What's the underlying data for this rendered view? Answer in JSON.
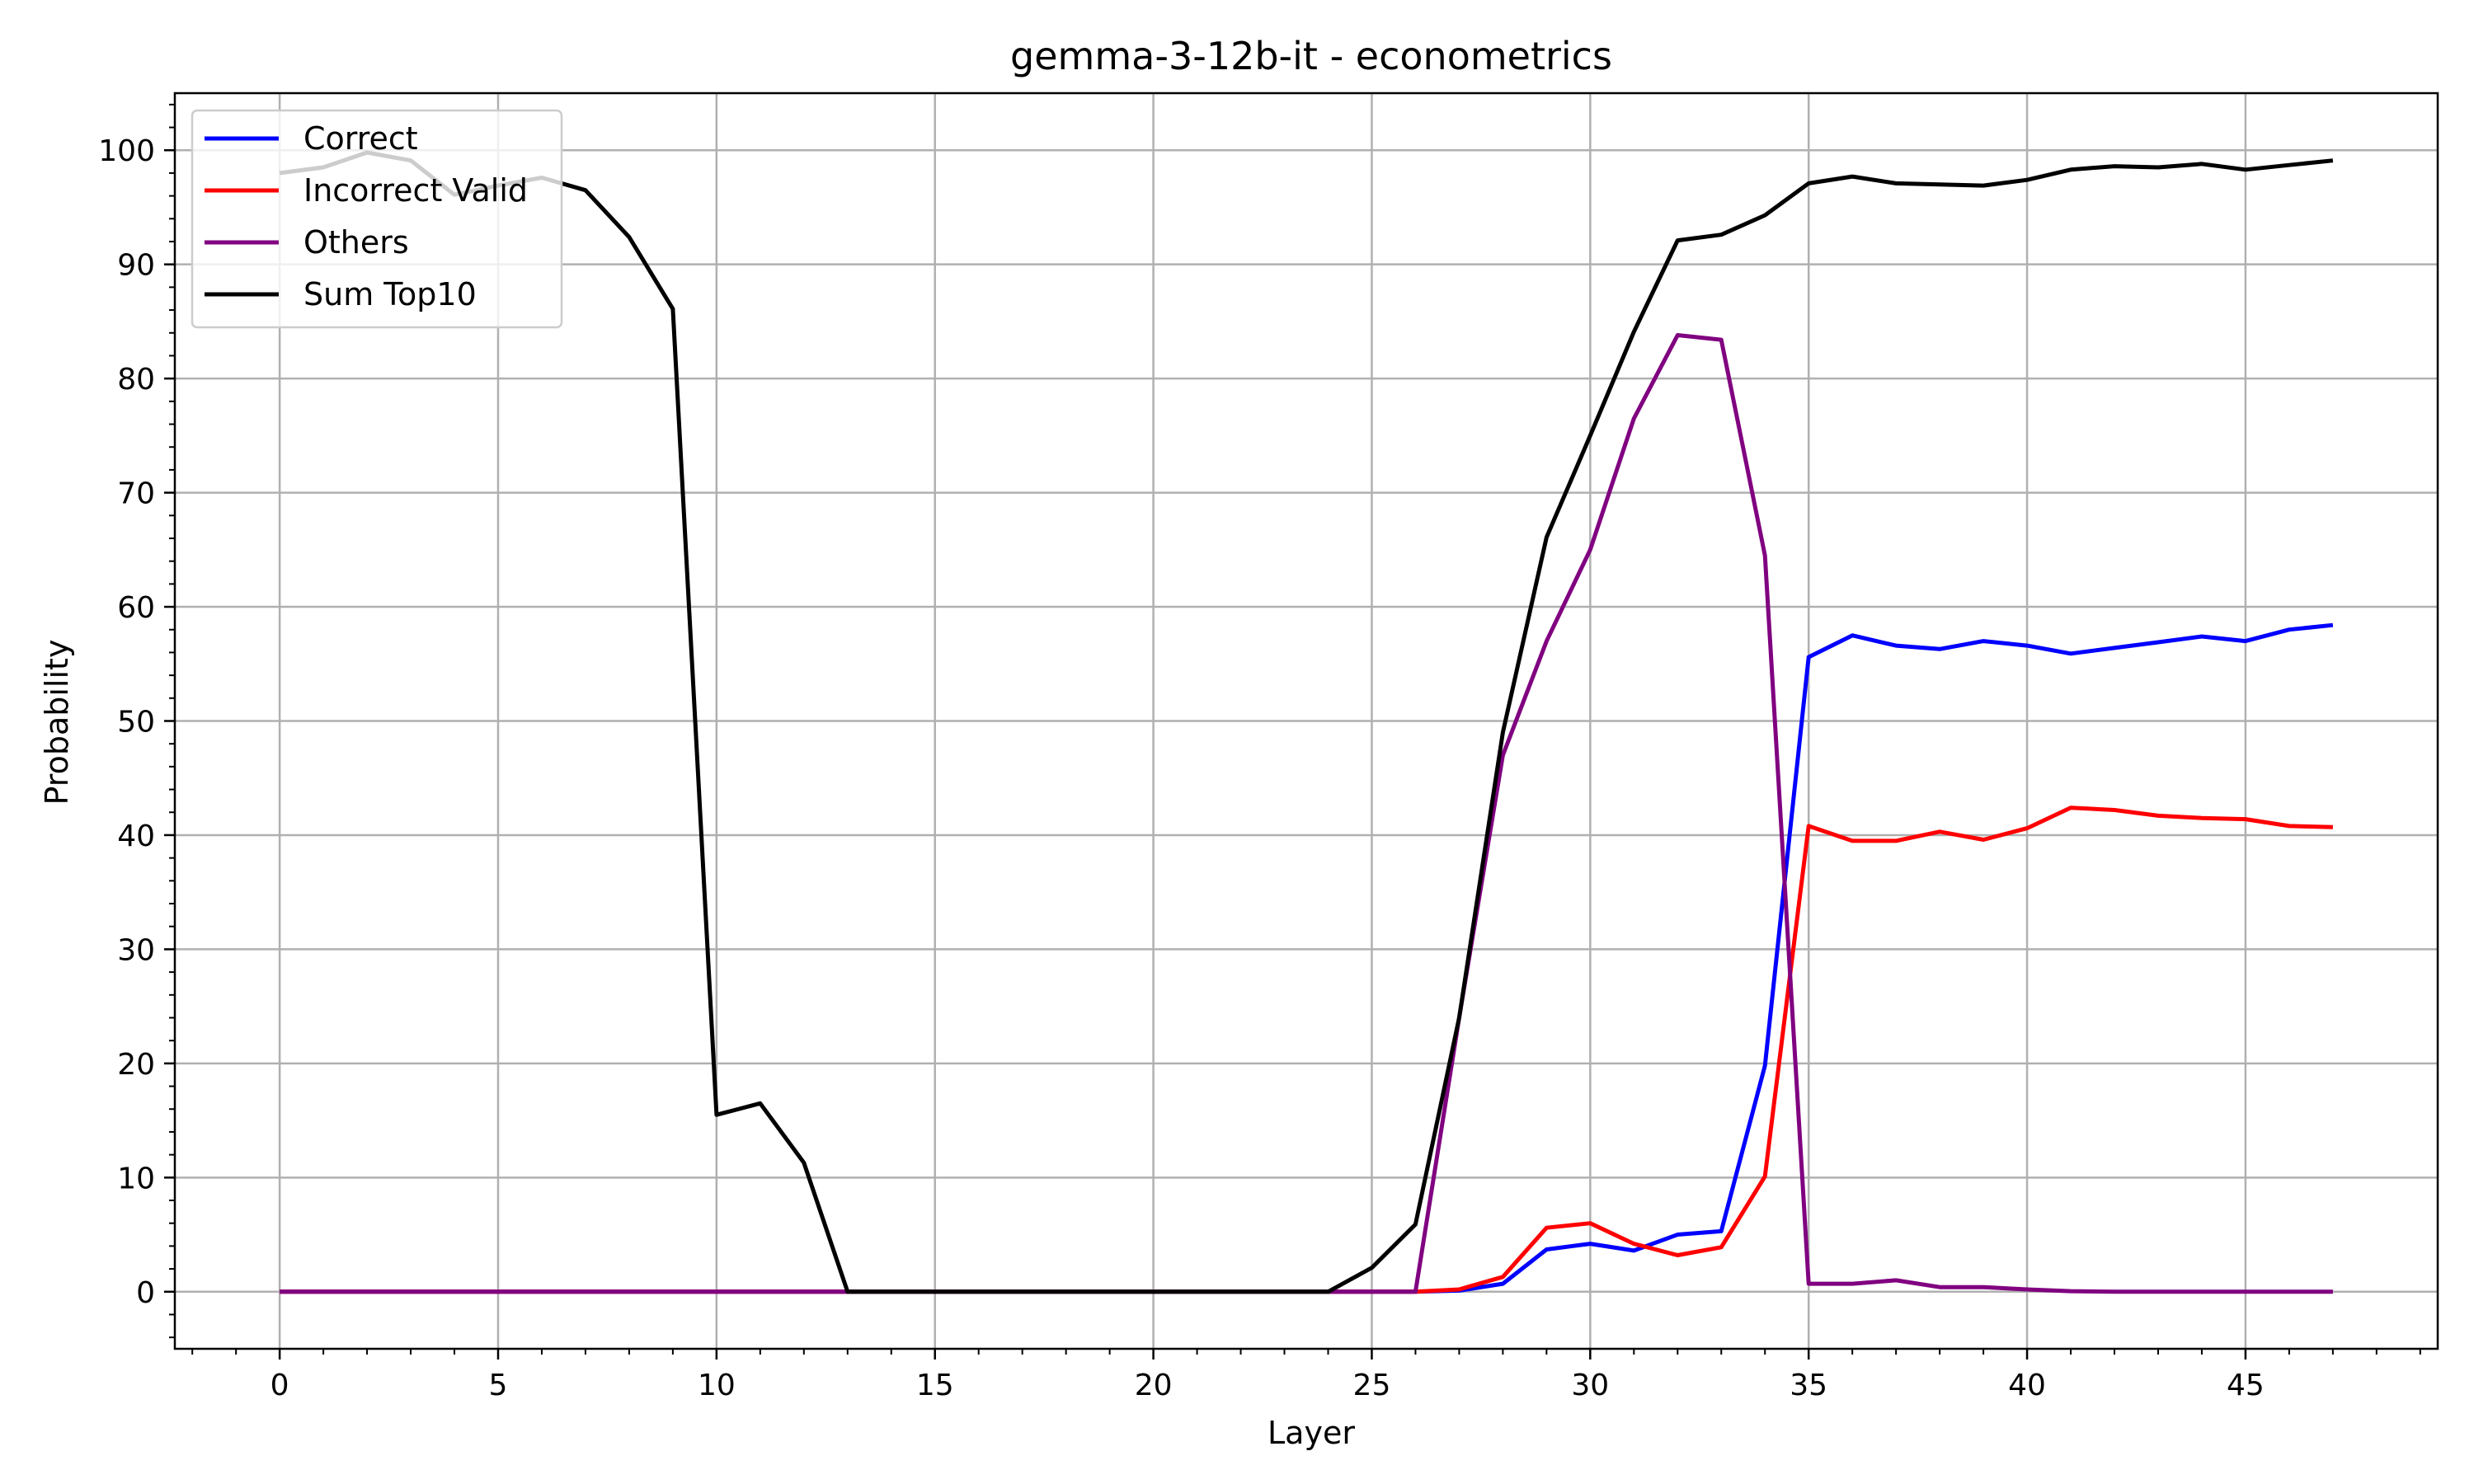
{
  "chart_data": {
    "type": "line",
    "title": "gemma-3-12b-it - econometrics",
    "xlabel": "Layer",
    "ylabel": "Probability",
    "xlim": [
      -2.4,
      49.4
    ],
    "ylim": [
      -5,
      105
    ],
    "xticks": [
      0,
      5,
      10,
      15,
      20,
      25,
      30,
      35,
      40,
      45
    ],
    "yticks": [
      0,
      10,
      20,
      30,
      40,
      50,
      60,
      70,
      80,
      90,
      100
    ],
    "grid": true,
    "legend_position": "top-left",
    "x": [
      0,
      1,
      2,
      3,
      4,
      5,
      6,
      7,
      8,
      9,
      10,
      11,
      12,
      13,
      14,
      15,
      16,
      17,
      18,
      19,
      20,
      21,
      22,
      23,
      24,
      25,
      26,
      27,
      28,
      29,
      30,
      31,
      32,
      33,
      34,
      35,
      36,
      37,
      38,
      39,
      40,
      41,
      42,
      43,
      44,
      45,
      46,
      47
    ],
    "series": [
      {
        "name": "Correct",
        "color": "#0000ff",
        "values": [
          0,
          0,
          0,
          0,
          0,
          0,
          0,
          0,
          0,
          0,
          0,
          0,
          0,
          0,
          0,
          0,
          0,
          0,
          0,
          0,
          0,
          0,
          0,
          0,
          0,
          0,
          0,
          0.1,
          0.7,
          3.7,
          4.2,
          3.6,
          5.0,
          5.3,
          19.8,
          55.6,
          57.5,
          56.6,
          56.3,
          57.0,
          56.6,
          55.9,
          56.4,
          56.9,
          57.4,
          57.0,
          58.0,
          58.4
        ]
      },
      {
        "name": "Incorrect Valid",
        "color": "#ff0000",
        "values": [
          0,
          0,
          0,
          0,
          0,
          0,
          0,
          0,
          0,
          0,
          0,
          0,
          0,
          0,
          0,
          0,
          0,
          0,
          0,
          0,
          0,
          0,
          0,
          0,
          0,
          0,
          0,
          0.2,
          1.3,
          5.6,
          6.0,
          4.2,
          3.2,
          3.9,
          10.1,
          40.8,
          39.5,
          39.5,
          40.3,
          39.6,
          40.6,
          42.4,
          42.2,
          41.7,
          41.5,
          41.4,
          40.8,
          40.7
        ]
      },
      {
        "name": "Others",
        "color": "#800080",
        "values": [
          0,
          0,
          0,
          0,
          0,
          0,
          0,
          0,
          0,
          0,
          0,
          0,
          0,
          0,
          0,
          0,
          0,
          0,
          0,
          0,
          0,
          0,
          0,
          0,
          0,
          0,
          0,
          24.0,
          47.0,
          57.0,
          65.0,
          76.5,
          83.8,
          83.4,
          64.5,
          0.7,
          0.7,
          1.0,
          0.4,
          0.4,
          0.2,
          0.05,
          0,
          0,
          0,
          0,
          0,
          0
        ]
      },
      {
        "name": "Sum Top10",
        "color": "#000000",
        "values": [
          98.0,
          98.5,
          99.8,
          99.1,
          96.1,
          96.9,
          97.6,
          96.5,
          92.4,
          86.1,
          15.5,
          16.5,
          11.3,
          0,
          0,
          0,
          0,
          0,
          0,
          0,
          0,
          0,
          0,
          0,
          0,
          2.1,
          5.9,
          24.0,
          49.0,
          66.1,
          75.0,
          84.1,
          92.1,
          92.6,
          94.3,
          97.1,
          97.7,
          97.1,
          97.0,
          96.9,
          97.4,
          98.3,
          98.6,
          98.5,
          98.8,
          98.3,
          98.7,
          99.1
        ]
      }
    ]
  }
}
